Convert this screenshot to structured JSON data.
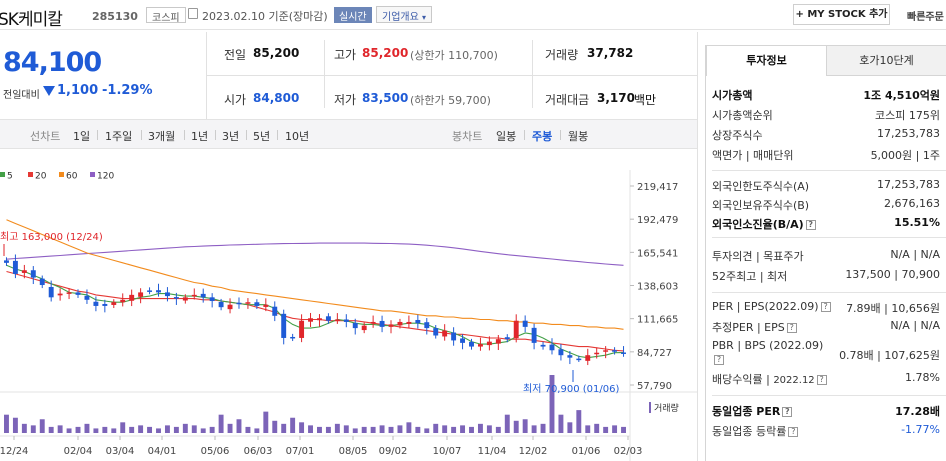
{
  "header": {
    "name": "SK케미칼",
    "code": "285130",
    "market": "코스피",
    "date": "2023.02.10 기준(장마감)",
    "realtime": "실시간",
    "overview": "기업개요",
    "mystock": "MY STOCK 추가",
    "fast_order": "빠른주문"
  },
  "price": {
    "current": "84,100",
    "compare_label": "전일대비",
    "change": "1,100",
    "change_pct": "-1.29%"
  },
  "summary": {
    "prev_label": "전일",
    "prev": "85,200",
    "high_label": "고가",
    "high": "85,200",
    "high_limit": "(상한가 110,700)",
    "volume_label": "거래량",
    "volume": "37,782",
    "open_label": "시가",
    "open": "84,800",
    "low_label": "저가",
    "low": "83,500",
    "low_limit": "(하한가 59,700)",
    "amount_label": "거래대금",
    "amount": "3,170",
    "amount_unit": "백만"
  },
  "period": {
    "line_label": "선차트",
    "line_items": [
      "1일",
      "1주일",
      "3개월",
      "1년",
      "3년",
      "5년",
      "10년"
    ],
    "candle_label": "봉차트",
    "candle_items": [
      "일봉",
      "주봉",
      "월봉"
    ],
    "active": "주봉"
  },
  "chart_data": {
    "type": "candlestick",
    "legend": [
      {
        "name": "5",
        "color": "#43a047"
      },
      {
        "name": "20",
        "color": "#e53935"
      },
      {
        "name": "60",
        "color": "#f28b1d"
      },
      {
        "name": "120",
        "color": "#8e5fc4"
      }
    ],
    "y_ticks": [
      "219,417",
      "192,479",
      "165,541",
      "138,603",
      "111,665",
      "84,727",
      "57,790"
    ],
    "ylim": [
      57790,
      219417
    ],
    "x_labels": [
      "12/24",
      "02/04",
      "03/04",
      "04/01",
      "05/06",
      "06/03",
      "07/01",
      "08/05",
      "09/02",
      "10/07",
      "11/04",
      "12/02",
      "01/06",
      "02/03"
    ],
    "high_annotation": "최고 163,000 (12/24)",
    "low_annotation": "최저 70,900 (01/06)",
    "volume_label": "거래량",
    "up_color": "#e0262b",
    "down_color": "#1f5bd6",
    "closes": [
      157000,
      148000,
      151000,
      145000,
      139000,
      129000,
      132000,
      133000,
      131000,
      127000,
      122000,
      122000,
      125000,
      127000,
      131000,
      133000,
      134000,
      133000,
      130000,
      128000,
      129000,
      131000,
      129000,
      126000,
      121000,
      123000,
      124000,
      125000,
      122000,
      123000,
      114000,
      96000,
      96000,
      110000,
      112000,
      112000,
      110000,
      111000,
      109000,
      104000,
      106000,
      109000,
      105000,
      107000,
      109000,
      109000,
      108000,
      104000,
      98000,
      102000,
      94000,
      92000,
      89000,
      91000,
      93000,
      95000,
      95000,
      110000,
      105000,
      92000,
      89000,
      86000,
      82000,
      80000,
      79000,
      82000,
      84000,
      86000,
      85000,
      84100
    ],
    "ma5": [
      155000,
      152000,
      150000,
      147000,
      144000,
      140000,
      137000,
      133000,
      132000,
      131000,
      127000,
      126000,
      125000,
      125000,
      127000,
      129000,
      130000,
      132000,
      132000,
      131000,
      130000,
      130000,
      129000,
      128000,
      126000,
      125000,
      124000,
      123000,
      123000,
      123000,
      120000,
      112000,
      107000,
      104000,
      104000,
      105000,
      108000,
      111000,
      110000,
      108000,
      107000,
      107000,
      106000,
      106000,
      107000,
      108000,
      108000,
      107000,
      104000,
      102000,
      100000,
      97000,
      93000,
      91000,
      91000,
      92000,
      93000,
      97000,
      100000,
      99000,
      96000,
      92000,
      87000,
      84000,
      81000,
      80000,
      81000,
      82000,
      84000,
      84100
    ],
    "ma20": [
      150000,
      148000,
      146000,
      144000,
      142000,
      140000,
      138000,
      136000,
      134000,
      133000,
      131000,
      130000,
      129000,
      128000,
      128000,
      128000,
      128000,
      128000,
      128000,
      128000,
      128000,
      128000,
      127000,
      127000,
      126000,
      125000,
      124000,
      123000,
      121000,
      119000,
      117000,
      114000,
      112000,
      111000,
      111000,
      111000,
      110000,
      110000,
      110000,
      110000,
      109000,
      108000,
      107000,
      106000,
      105000,
      104000,
      103000,
      102000,
      101000,
      100000,
      99000,
      99000,
      98000,
      97000,
      96000,
      96000,
      95000,
      95000,
      95000,
      94000,
      93000,
      92000,
      91000,
      90000,
      89000,
      89000,
      88000,
      87000,
      86000,
      85500
    ],
    "ma60": [
      192000,
      189000,
      186000,
      183000,
      180000,
      177000,
      174000,
      171000,
      168000,
      165000,
      163000,
      161000,
      159000,
      157000,
      155000,
      153000,
      151000,
      149000,
      147000,
      145000,
      143000,
      141000,
      140000,
      138000,
      137000,
      135000,
      134000,
      133000,
      132000,
      131000,
      130000,
      129000,
      128000,
      127000,
      126000,
      125000,
      124000,
      123000,
      122000,
      121000,
      120000,
      119000,
      118000,
      118000,
      117000,
      116000,
      115000,
      114000,
      114000,
      113000,
      113000,
      112000,
      112000,
      111000,
      111000,
      110000,
      110000,
      109000,
      109000,
      108000,
      108000,
      107000,
      107000,
      106000,
      106000,
      105000,
      105000,
      104000,
      104000,
      103000
    ],
    "ma120": [
      160000,
      160500,
      161000,
      161500,
      162000,
      162500,
      163000,
      163500,
      164000,
      164500,
      165000,
      165500,
      166000,
      166500,
      167000,
      167500,
      168000,
      168500,
      169000,
      169500,
      170000,
      170300,
      170600,
      170900,
      171200,
      171500,
      171700,
      171900,
      172100,
      172300,
      172500,
      172600,
      172700,
      172800,
      172900,
      173000,
      173000,
      173000,
      173000,
      173000,
      173000,
      172900,
      172800,
      172700,
      172500,
      172200,
      171800,
      171300,
      170700,
      170000,
      169200,
      168300,
      167300,
      166300,
      165300,
      164400,
      163600,
      162900,
      162200,
      161500,
      160800,
      160100,
      159400,
      158700,
      158000,
      157300,
      156700,
      156100,
      155500,
      155000
    ],
    "volumes": [
      12,
      10,
      6,
      5,
      9,
      4,
      5,
      3,
      4,
      6,
      3,
      4,
      3,
      7,
      4,
      5,
      4,
      3,
      5,
      4,
      6,
      5,
      3,
      4,
      12,
      6,
      9,
      4,
      3,
      14,
      8,
      6,
      10,
      7,
      5,
      4,
      4,
      6,
      5,
      3,
      4,
      4,
      5,
      4,
      5,
      7,
      4,
      3,
      6,
      5,
      4,
      5,
      4,
      6,
      5,
      4,
      12,
      8,
      9,
      5,
      6,
      38,
      12,
      7,
      15,
      5,
      6,
      4,
      5,
      4
    ]
  },
  "invest": {
    "tab_active": "투자정보",
    "tab_other": "호가10단계",
    "rows1": [
      {
        "k": "시가총액",
        "v": "1조 4,510억원",
        "bold": true
      },
      {
        "k": "시가총액순위",
        "v": "코스피 175위"
      },
      {
        "k": "상장주식수",
        "v": "17,253,783"
      },
      {
        "k": "액면가 | 매매단위",
        "v": "5,000원 | 1주"
      }
    ],
    "rows2": [
      {
        "k": "외국인한도주식수(A)",
        "v": "17,253,783"
      },
      {
        "k": "외국인보유주식수(B)",
        "v": "2,676,163"
      },
      {
        "k": "외국인소진율(B/A)",
        "v": "15.51%",
        "bold": true
      }
    ],
    "rows3": [
      {
        "k": "투자의견 | 목표주가",
        "v": "N/A | N/A"
      },
      {
        "k": "52주최고 | 최저",
        "v": "137,500 | 70,900"
      }
    ],
    "per_label": "PER | EPS(2022.09)",
    "per": "7.89배",
    "eps": "10,656원",
    "eper_label": "추정PER | EPS",
    "eper": "N/A",
    "eeps": "N/A",
    "pbr_label": "PBR | BPS (2022.09)",
    "pbr": "0.78배",
    "bps": "107,625원",
    "div_label": "배당수익률",
    "div_date": "2022.12",
    "div": "1.78%",
    "ind_per_label": "동일업종 PER",
    "ind_per": "17.28배",
    "ind_rate_label": "동일업종 등락률",
    "ind_rate": "-1.77%"
  }
}
